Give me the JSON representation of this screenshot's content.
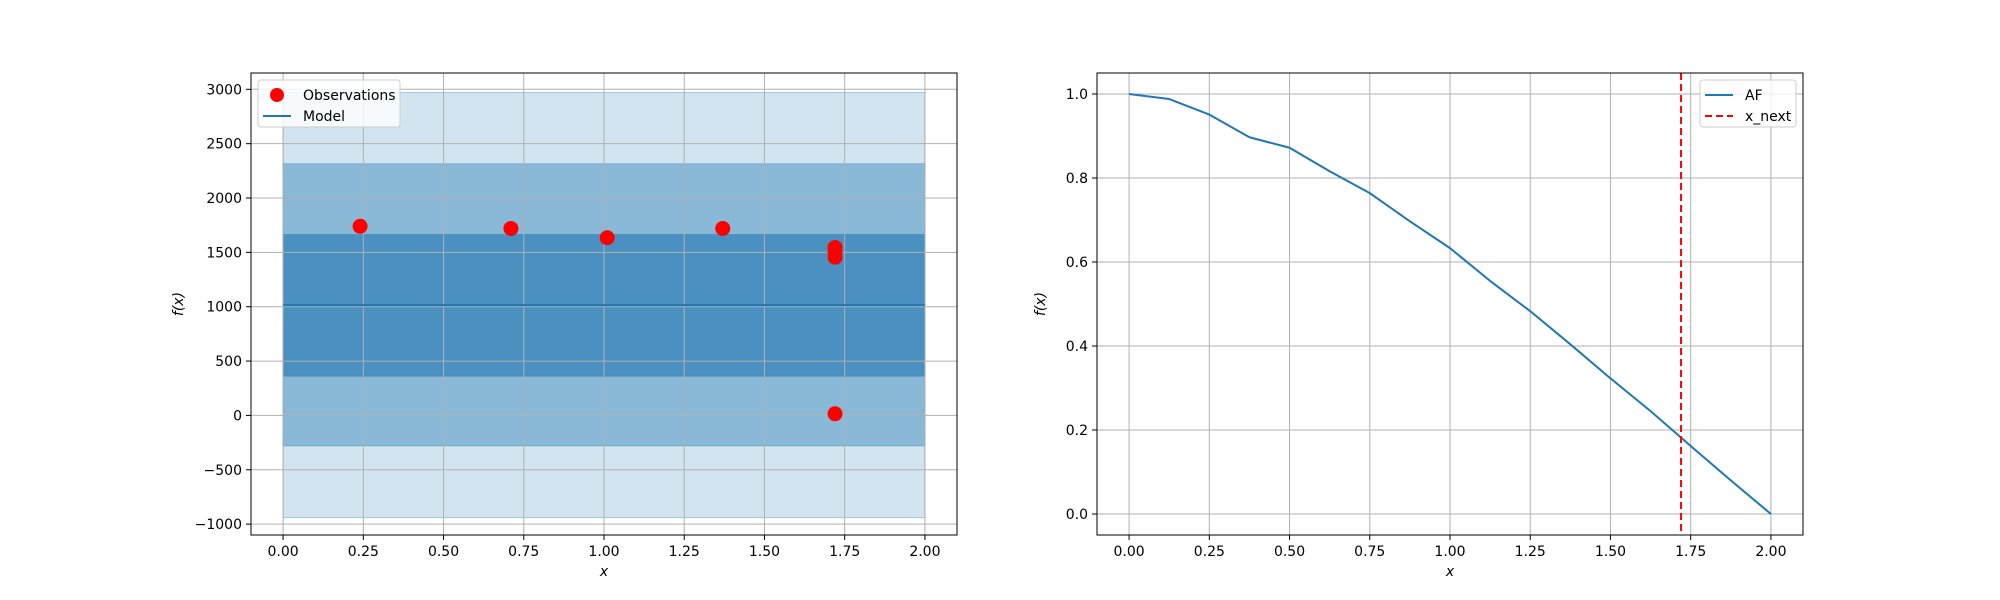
{
  "chart_data": [
    {
      "type": "scatter",
      "xlabel": "x",
      "ylabel": "f(x)",
      "xlim": [
        -0.1,
        2.1
      ],
      "ylim": [
        -1100,
        3150
      ],
      "xticks": [
        0.0,
        0.25,
        0.5,
        0.75,
        1.0,
        1.25,
        1.5,
        1.75,
        2.0
      ],
      "xtick_labels": [
        "0.00",
        "0.25",
        "0.50",
        "0.75",
        "1.00",
        "1.25",
        "1.50",
        "1.75",
        "2.00"
      ],
      "yticks": [
        -1000,
        -500,
        0,
        500,
        1000,
        1500,
        2000,
        2500,
        3000
      ],
      "ytick_labels": [
        "−1000",
        "−500",
        "0",
        "500",
        "1000",
        "1500",
        "2000",
        "2500",
        "3000"
      ],
      "grid": true,
      "legend_position": "top-left",
      "legend": [
        "Observations",
        "Model"
      ],
      "observations": {
        "x": [
          0.24,
          0.71,
          1.01,
          1.37,
          1.72,
          1.72,
          1.72,
          1.72
        ],
        "y": [
          1740,
          1720,
          1635,
          1720,
          1545,
          1505,
          1455,
          15
        ],
        "color": "#ff0000"
      },
      "model": {
        "x": [
          0.0,
          2.0
        ],
        "y": [
          1015,
          1015
        ],
        "color": "#1f77b4"
      },
      "bands": [
        {
          "x": [
            0.0,
            2.0
          ],
          "lower": -940,
          "upper": 2970,
          "opacity": 0.2
        },
        {
          "x": [
            0.0,
            2.0
          ],
          "lower": -280,
          "upper": 2315,
          "opacity": 0.4
        },
        {
          "x": [
            0.0,
            2.0
          ],
          "lower": 360,
          "upper": 1665,
          "opacity": 0.6
        }
      ]
    },
    {
      "type": "line",
      "xlabel": "x",
      "ylabel": "f(x)",
      "xlim": [
        -0.1,
        2.1
      ],
      "ylim": [
        -0.05,
        1.05
      ],
      "xticks": [
        0.0,
        0.25,
        0.5,
        0.75,
        1.0,
        1.25,
        1.5,
        1.75,
        2.0
      ],
      "xtick_labels": [
        "0.00",
        "0.25",
        "0.50",
        "0.75",
        "1.00",
        "1.25",
        "1.50",
        "1.75",
        "2.00"
      ],
      "yticks": [
        0.0,
        0.2,
        0.4,
        0.6,
        0.8,
        1.0
      ],
      "ytick_labels": [
        "0.0",
        "0.2",
        "0.4",
        "0.6",
        "0.8",
        "1.0"
      ],
      "grid": true,
      "legend_position": "top-right",
      "legend": [
        "AF",
        "x_next"
      ],
      "af": {
        "x": [
          0.0,
          0.125,
          0.25,
          0.375,
          0.5,
          0.625,
          0.75,
          0.875,
          1.0,
          1.125,
          1.25,
          1.375,
          1.5,
          1.625,
          1.75,
          1.875,
          2.0
        ],
        "y": [
          1.0,
          0.988,
          0.951,
          0.897,
          0.872,
          0.816,
          0.764,
          0.697,
          0.633,
          0.555,
          0.483,
          0.404,
          0.323,
          0.245,
          0.162,
          0.08,
          0.0
        ],
        "color": "#1f77b4"
      },
      "x_next": {
        "x": 1.72,
        "color": "#ff0000"
      }
    }
  ]
}
